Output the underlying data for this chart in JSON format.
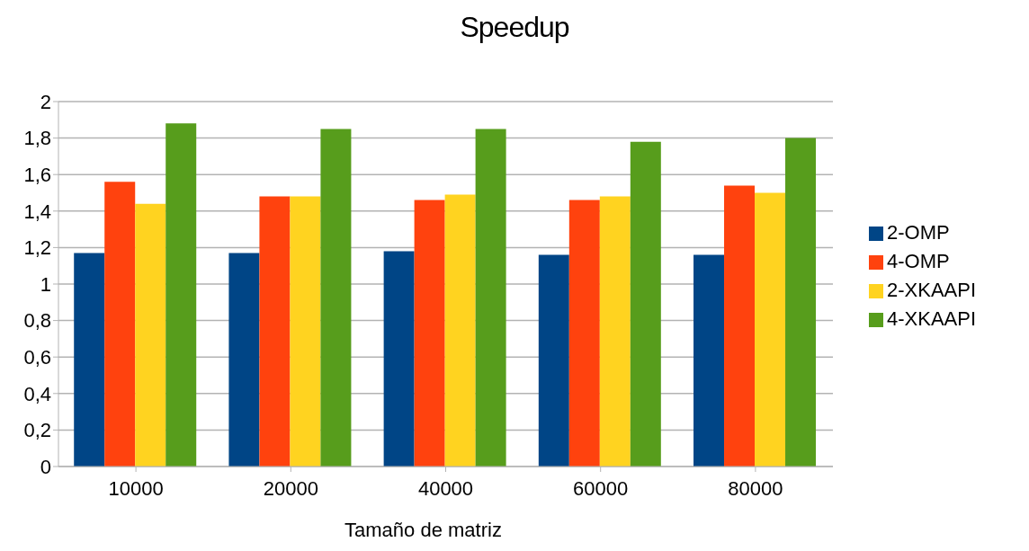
{
  "chart_data": {
    "type": "bar",
    "title": "Speedup",
    "xlabel": "Tamaño de matriz",
    "categories": [
      "10000",
      "20000",
      "40000",
      "60000",
      "80000"
    ],
    "series": [
      {
        "name": "2-OMP",
        "color": "#004586",
        "values": [
          1.17,
          1.17,
          1.18,
          1.16,
          1.16
        ]
      },
      {
        "name": "4-OMP",
        "color": "#ff420e",
        "values": [
          1.56,
          1.48,
          1.46,
          1.46,
          1.54
        ]
      },
      {
        "name": "2-XKAAPI",
        "color": "#ffd320",
        "values": [
          1.44,
          1.48,
          1.49,
          1.48,
          1.5
        ]
      },
      {
        "name": "4-XKAAPI",
        "color": "#579d1c",
        "values": [
          1.88,
          1.85,
          1.85,
          1.78,
          1.8
        ]
      }
    ],
    "ylim": [
      0,
      2
    ],
    "yticks": [
      {
        "value": 0,
        "label": "0"
      },
      {
        "value": 0.2,
        "label": "0,2"
      },
      {
        "value": 0.4,
        "label": "0,4"
      },
      {
        "value": 0.6,
        "label": "0,6"
      },
      {
        "value": 0.8,
        "label": "0,8"
      },
      {
        "value": 1,
        "label": "1"
      },
      {
        "value": 1.2,
        "label": "1,2"
      },
      {
        "value": 1.4,
        "label": "1,4"
      },
      {
        "value": 1.6,
        "label": "1,6"
      },
      {
        "value": 1.8,
        "label": "1,8"
      },
      {
        "value": 2,
        "label": "2"
      }
    ],
    "grid": "y",
    "legend": "right"
  }
}
